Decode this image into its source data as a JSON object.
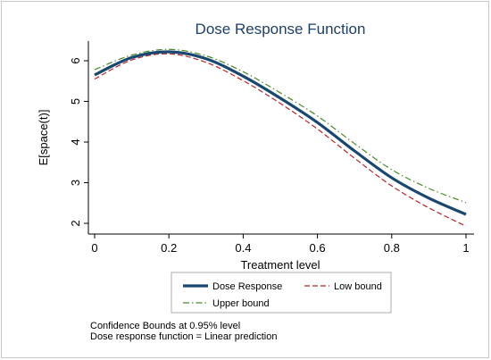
{
  "chart_data": {
    "type": "line",
    "title": "Dose Response Function",
    "xlabel": "Treatment level",
    "ylabel": "E[space(t)]",
    "xlim": [
      0,
      1
    ],
    "ylim": [
      1.8,
      6.4
    ],
    "x_ticks": [
      "0",
      "0.2",
      "0.4",
      "0.6",
      "0.8",
      "1"
    ],
    "y_ticks": [
      "2",
      "3",
      "4",
      "5",
      "6"
    ],
    "grid": false,
    "legend_position": "bottom",
    "x": [
      0,
      0.1,
      0.2,
      0.3,
      0.4,
      0.5,
      0.6,
      0.7,
      0.8,
      0.9,
      1.0
    ],
    "series": [
      {
        "name": "Dose Response",
        "color": "#1a476f",
        "style": "solid",
        "values": [
          5.65,
          6.08,
          6.22,
          6.05,
          5.62,
          5.08,
          4.48,
          3.78,
          3.12,
          2.62,
          2.22
        ]
      },
      {
        "name": "Low bound",
        "color": "#b0262a",
        "style": "dash",
        "values": [
          5.55,
          6.02,
          6.17,
          5.96,
          5.51,
          4.95,
          4.32,
          3.6,
          2.92,
          2.38,
          1.93
        ]
      },
      {
        "name": "Upper bound",
        "color": "#4a8a2a",
        "style": "dashdot",
        "values": [
          5.78,
          6.14,
          6.28,
          6.12,
          5.73,
          5.21,
          4.64,
          3.96,
          3.32,
          2.86,
          2.51
        ]
      }
    ],
    "notes": [
      "Confidence Bounds at 0.95% level",
      "Dose response function = Linear prediction"
    ]
  }
}
